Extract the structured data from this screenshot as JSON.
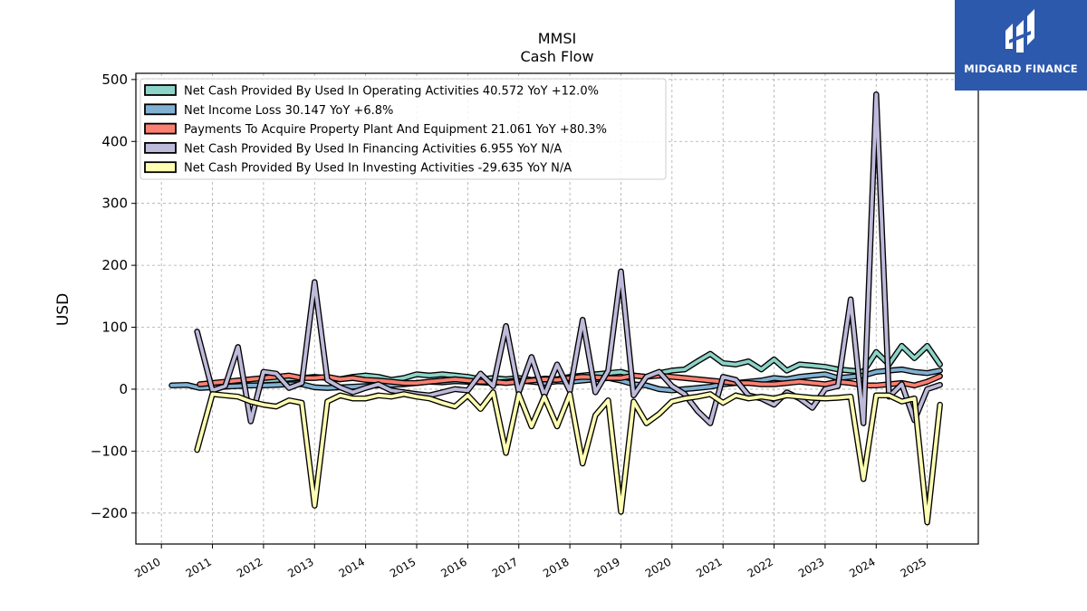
{
  "brand": {
    "logo_text": "MIDGARD FINANCE",
    "color": "#2d59ac"
  },
  "chart_data": {
    "type": "line",
    "title": "MMSI",
    "subtitle": "Cash Flow",
    "ylabel": "USD",
    "xlabel": "",
    "ylim": [
      -250,
      510
    ],
    "xlim": [
      2009.5,
      2026.0
    ],
    "y_ticks": [
      500,
      400,
      300,
      200,
      100,
      0,
      -100,
      -200
    ],
    "y_tick_labels": [
      "500",
      "400",
      "300",
      "200",
      "100",
      "0",
      "−100",
      "−200"
    ],
    "x_ticks": [
      2010,
      2011,
      2012,
      2013,
      2014,
      2015,
      2016,
      2017,
      2018,
      2019,
      2020,
      2021,
      2022,
      2023,
      2024,
      2025
    ],
    "grid": true,
    "legend_position": "upper-left",
    "series": [
      {
        "name": "Net Cash Provided By Used In Operating Activities",
        "legend": "Net Cash Provided By Used In Operating Activities  40.572 YoY +12.0%",
        "color": "#8dd3c7",
        "x": [
          2011.0,
          2011.25,
          2011.5,
          2011.75,
          2012.0,
          2012.25,
          2012.5,
          2012.75,
          2013.0,
          2013.25,
          2013.5,
          2013.75,
          2014.0,
          2014.25,
          2014.5,
          2014.75,
          2015.0,
          2015.25,
          2015.5,
          2015.75,
          2016.0,
          2016.25,
          2016.5,
          2016.75,
          2017.0,
          2017.25,
          2017.5,
          2017.75,
          2018.0,
          2018.25,
          2018.5,
          2018.75,
          2019.0,
          2019.25,
          2019.5,
          2019.75,
          2020.0,
          2020.25,
          2020.5,
          2020.75,
          2021.0,
          2021.25,
          2021.5,
          2021.75,
          2022.0,
          2022.25,
          2022.5,
          2022.75,
          2023.0,
          2023.25,
          2023.5,
          2023.75,
          2024.0,
          2024.25,
          2024.5,
          2024.75,
          2025.0,
          2025.25
        ],
        "y": [
          5,
          8,
          10,
          12,
          14,
          15,
          17,
          18,
          20,
          18,
          16,
          20,
          22,
          20,
          15,
          18,
          24,
          22,
          24,
          22,
          20,
          16,
          18,
          16,
          18,
          15,
          17,
          16,
          20,
          22,
          24,
          26,
          28,
          22,
          20,
          26,
          30,
          32,
          45,
          57,
          42,
          40,
          45,
          32,
          48,
          30,
          40,
          38,
          36,
          32,
          30,
          28,
          60,
          40,
          70,
          50,
          70,
          40
        ]
      },
      {
        "name": "Net Income Loss",
        "legend": "Net Income Loss  30.147 YoY +6.8%",
        "color": "#80b1d3",
        "x": [
          2010.2,
          2010.5,
          2010.75,
          2011.0,
          2011.25,
          2011.5,
          2011.75,
          2012.0,
          2012.25,
          2012.5,
          2012.75,
          2013.0,
          2013.25,
          2013.5,
          2013.75,
          2014.0,
          2014.25,
          2014.5,
          2014.75,
          2015.0,
          2015.25,
          2015.5,
          2015.75,
          2016.0,
          2016.25,
          2016.5,
          2016.75,
          2017.0,
          2017.25,
          2017.5,
          2017.75,
          2018.0,
          2018.25,
          2018.5,
          2018.75,
          2019.0,
          2019.25,
          2019.5,
          2019.75,
          2020.0,
          2020.25,
          2020.5,
          2020.75,
          2021.0,
          2021.25,
          2021.5,
          2021.75,
          2022.0,
          2022.25,
          2022.5,
          2022.75,
          2023.0,
          2023.25,
          2023.5,
          2023.75,
          2024.0,
          2024.25,
          2024.5,
          2024.75,
          2025.0,
          2025.25
        ],
        "y": [
          6,
          7,
          2,
          3,
          4,
          5,
          6,
          6,
          7,
          8,
          8,
          3,
          2,
          3,
          4,
          5,
          6,
          7,
          8,
          10,
          12,
          11,
          13,
          12,
          11,
          10,
          12,
          14,
          12,
          10,
          13,
          12,
          14,
          16,
          18,
          14,
          8,
          6,
          0,
          -2,
          0,
          2,
          4,
          8,
          10,
          12,
          14,
          18,
          16,
          20,
          22,
          24,
          18,
          20,
          22,
          28,
          30,
          32,
          28,
          26,
          30
        ]
      },
      {
        "name": "Payments To Acquire Property Plant And Equipment",
        "legend": "Payments To Acquire Property Plant And Equipment  21.061 YoY +80.3%",
        "color": "#fb8072",
        "x": [
          2010.75,
          2011.0,
          2011.25,
          2011.5,
          2011.75,
          2012.0,
          2012.25,
          2012.5,
          2012.75,
          2013.0,
          2013.25,
          2013.5,
          2013.75,
          2014.0,
          2014.25,
          2014.5,
          2014.75,
          2015.0,
          2015.25,
          2015.5,
          2015.75,
          2016.0,
          2016.25,
          2016.5,
          2016.75,
          2017.0,
          2017.25,
          2017.5,
          2017.75,
          2018.0,
          2018.25,
          2018.5,
          2018.75,
          2019.0,
          2019.25,
          2019.5,
          2019.75,
          2020.0,
          2020.25,
          2020.5,
          2020.75,
          2021.0,
          2021.25,
          2021.5,
          2021.75,
          2022.0,
          2022.25,
          2022.5,
          2022.75,
          2023.0,
          2023.25,
          2023.5,
          2023.75,
          2024.0,
          2024.25,
          2024.5,
          2024.75,
          2025.0,
          2025.25
        ],
        "y": [
          8,
          10,
          12,
          14,
          16,
          18,
          20,
          22,
          18,
          18,
          20,
          16,
          18,
          15,
          14,
          12,
          10,
          10,
          12,
          14,
          16,
          14,
          12,
          12,
          10,
          12,
          14,
          16,
          15,
          18,
          20,
          19,
          18,
          18,
          22,
          20,
          22,
          20,
          18,
          16,
          14,
          12,
          10,
          10,
          8,
          8,
          10,
          12,
          10,
          8,
          12,
          10,
          6,
          6,
          8,
          10,
          6,
          12,
          21
        ]
      },
      {
        "name": "Net Cash Provided By Used In Financing Activities",
        "legend": "Net Cash Provided By Used In Financing Activities  6.955 YoY N/A",
        "color": "#bebada",
        "x": [
          2010.7,
          2011.0,
          2011.25,
          2011.5,
          2011.75,
          2012.0,
          2012.25,
          2012.5,
          2012.75,
          2013.0,
          2013.25,
          2013.5,
          2013.75,
          2014.0,
          2014.25,
          2014.5,
          2014.75,
          2015.0,
          2015.25,
          2015.5,
          2015.75,
          2016.0,
          2016.25,
          2016.5,
          2016.75,
          2017.0,
          2017.25,
          2017.5,
          2017.75,
          2018.0,
          2018.25,
          2018.5,
          2018.75,
          2019.0,
          2019.25,
          2019.5,
          2019.75,
          2020.0,
          2020.25,
          2020.5,
          2020.75,
          2021.0,
          2021.25,
          2021.5,
          2021.75,
          2022.0,
          2022.25,
          2022.5,
          2022.75,
          2023.0,
          2023.25,
          2023.5,
          2023.75,
          2024.0,
          2024.25,
          2024.5,
          2024.75,
          2025.0,
          2025.25
        ],
        "y": [
          93,
          -2,
          5,
          68,
          -52,
          28,
          25,
          2,
          10,
          173,
          15,
          3,
          -5,
          2,
          8,
          -2,
          -5,
          -8,
          -10,
          -5,
          0,
          -2,
          25,
          5,
          102,
          -5,
          52,
          -10,
          40,
          -3,
          112,
          -5,
          30,
          190,
          -10,
          20,
          28,
          5,
          -8,
          -35,
          -55,
          20,
          15,
          -10,
          -15,
          -25,
          -5,
          -15,
          -30,
          0,
          5,
          145,
          -55,
          476,
          -12,
          8,
          -50,
          0,
          7
        ]
      },
      {
        "name": "Net Cash Provided By Used In Investing Activities",
        "legend": "Net Cash Provided By Used In Investing Activities  -29.635 YoY N/A",
        "color": "#ffffb3",
        "x": [
          2010.7,
          2011.0,
          2011.25,
          2011.5,
          2011.75,
          2012.0,
          2012.25,
          2012.5,
          2012.75,
          2013.0,
          2013.25,
          2013.5,
          2013.75,
          2014.0,
          2014.25,
          2014.5,
          2014.75,
          2015.0,
          2015.25,
          2015.5,
          2015.75,
          2016.0,
          2016.25,
          2016.5,
          2016.75,
          2017.0,
          2017.25,
          2017.5,
          2017.75,
          2018.0,
          2018.25,
          2018.5,
          2018.75,
          2019.0,
          2019.25,
          2019.5,
          2019.75,
          2020.0,
          2020.25,
          2020.5,
          2020.75,
          2021.0,
          2021.25,
          2021.5,
          2021.75,
          2022.0,
          2022.25,
          2022.5,
          2022.75,
          2023.0,
          2023.25,
          2023.5,
          2023.75,
          2024.0,
          2024.25,
          2024.5,
          2024.75,
          2025.0,
          2025.25
        ],
        "y": [
          -98,
          -8,
          -10,
          -12,
          -20,
          -25,
          -28,
          -18,
          -22,
          -188,
          -20,
          -10,
          -15,
          -15,
          -10,
          -12,
          -8,
          -12,
          -15,
          -22,
          -28,
          -10,
          -32,
          -5,
          -103,
          -8,
          -60,
          -12,
          -60,
          -8,
          -120,
          -42,
          -18,
          -198,
          -20,
          -55,
          -40,
          -20,
          -15,
          -12,
          -8,
          -22,
          -10,
          -15,
          -12,
          -15,
          -10,
          -12,
          -14,
          -15,
          -14,
          -12,
          -145,
          -10,
          -10,
          -20,
          -15,
          -215,
          -25
        ]
      }
    ]
  }
}
